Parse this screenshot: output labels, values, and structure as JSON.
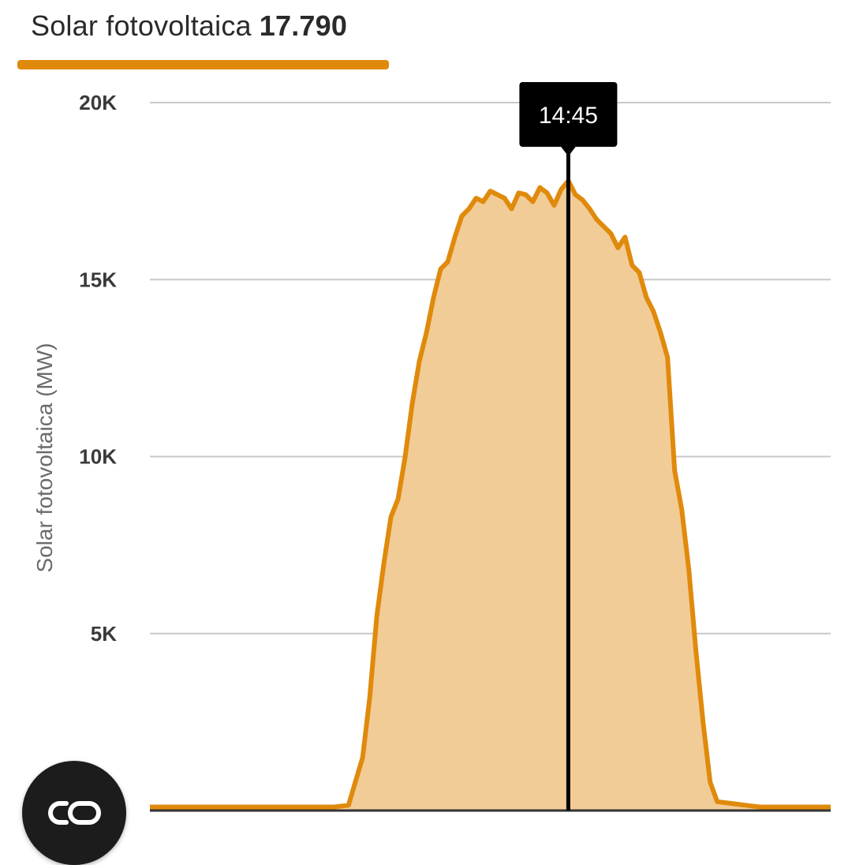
{
  "header": {
    "tab_label": "Solar fotovoltaica",
    "tab_value": "17.790"
  },
  "colors": {
    "accent": "#e08a0c",
    "fill": "#f2cc97",
    "grid": "#c8c8c8",
    "cursor": "#000000",
    "tooltip_bg": "#000000"
  },
  "tooltip": {
    "time": "14:45"
  },
  "fab": {
    "icon": "co2-icon"
  },
  "chart_data": {
    "type": "area",
    "ylabel": "Solar fotovoltaica (MW)",
    "ylim": [
      0,
      20000
    ],
    "yticks": [
      {
        "value": 5000,
        "label": "5K"
      },
      {
        "value": 10000,
        "label": "10K"
      },
      {
        "value": 15000,
        "label": "15K"
      },
      {
        "value": 20000,
        "label": "20K"
      }
    ],
    "grid": true,
    "x_unit": "hour",
    "xlim": [
      0,
      24
    ],
    "cursor_x": 14.75,
    "series": [
      {
        "points": [
          [
            0,
            100
          ],
          [
            6.5,
            100
          ],
          [
            7.0,
            150
          ],
          [
            7.5,
            1500
          ],
          [
            7.75,
            3200
          ],
          [
            8.0,
            5500
          ],
          [
            8.25,
            7000
          ],
          [
            8.5,
            8300
          ],
          [
            8.75,
            8800
          ],
          [
            9.0,
            10000
          ],
          [
            9.25,
            11500
          ],
          [
            9.5,
            12700
          ],
          [
            9.75,
            13500
          ],
          [
            10.0,
            14500
          ],
          [
            10.25,
            15300
          ],
          [
            10.5,
            15500
          ],
          [
            10.75,
            16200
          ],
          [
            11.0,
            16800
          ],
          [
            11.25,
            17000
          ],
          [
            11.5,
            17300
          ],
          [
            11.75,
            17200
          ],
          [
            12.0,
            17500
          ],
          [
            12.25,
            17400
          ],
          [
            12.5,
            17300
          ],
          [
            12.75,
            17000
          ],
          [
            13.0,
            17450
          ],
          [
            13.25,
            17400
          ],
          [
            13.5,
            17200
          ],
          [
            13.75,
            17600
          ],
          [
            14.0,
            17450
          ],
          [
            14.25,
            17100
          ],
          [
            14.5,
            17550
          ],
          [
            14.75,
            17790
          ],
          [
            15.0,
            17400
          ],
          [
            15.25,
            17250
          ],
          [
            15.5,
            17000
          ],
          [
            15.75,
            16700
          ],
          [
            16.0,
            16500
          ],
          [
            16.25,
            16300
          ],
          [
            16.5,
            15900
          ],
          [
            16.75,
            16200
          ],
          [
            17.0,
            15400
          ],
          [
            17.25,
            15200
          ],
          [
            17.5,
            14500
          ],
          [
            17.75,
            14100
          ],
          [
            18.0,
            13500
          ],
          [
            18.25,
            12800
          ],
          [
            18.5,
            9600
          ],
          [
            18.75,
            8500
          ],
          [
            19.0,
            6800
          ],
          [
            19.25,
            4500
          ],
          [
            19.5,
            2500
          ],
          [
            19.75,
            800
          ],
          [
            20.0,
            250
          ],
          [
            20.5,
            200
          ],
          [
            21.0,
            150
          ],
          [
            21.5,
            100
          ],
          [
            24,
            100
          ]
        ]
      }
    ],
    "tooltip_label": "14:45"
  }
}
